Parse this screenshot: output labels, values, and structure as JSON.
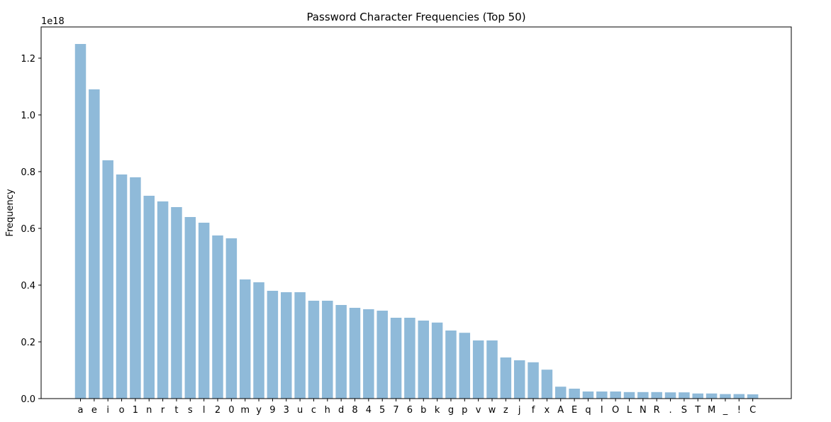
{
  "chart_data": {
    "type": "bar",
    "title": "Password Character Frequencies (Top 50)",
    "xlabel": "",
    "ylabel": "Frequency",
    "offset_text": "1e18",
    "scale": 1e+18,
    "ylim": [
      0,
      1.31
    ],
    "yticks": [
      0.0,
      0.2,
      0.4,
      0.6,
      0.8,
      1.0,
      1.2
    ],
    "ytick_labels": [
      "0.0",
      "0.2",
      "0.4",
      "0.6",
      "0.8",
      "1.0",
      "1.2"
    ],
    "grid": false,
    "bar_color": "#8fbad9",
    "categories": [
      "a",
      "e",
      "i",
      "o",
      "1",
      "n",
      "r",
      "t",
      "s",
      "l",
      "2",
      "0",
      "m",
      "y",
      "9",
      "3",
      "u",
      "c",
      "h",
      "d",
      "8",
      "4",
      "5",
      "7",
      "6",
      "b",
      "k",
      "g",
      "p",
      "v",
      "w",
      "z",
      "j",
      "f",
      "x",
      "A",
      "E",
      "q",
      "I",
      "O",
      "L",
      "N",
      "R",
      ".",
      "S",
      "T",
      "M",
      "_",
      "!",
      "C"
    ],
    "values": [
      1.25,
      1.09,
      0.84,
      0.79,
      0.78,
      0.715,
      0.695,
      0.675,
      0.64,
      0.62,
      0.575,
      0.565,
      0.42,
      0.41,
      0.38,
      0.375,
      0.375,
      0.345,
      0.345,
      0.33,
      0.32,
      0.315,
      0.31,
      0.285,
      0.285,
      0.275,
      0.268,
      0.24,
      0.232,
      0.205,
      0.205,
      0.145,
      0.135,
      0.128,
      0.102,
      0.042,
      0.035,
      0.025,
      0.025,
      0.025,
      0.023,
      0.023,
      0.023,
      0.022,
      0.022,
      0.018,
      0.018,
      0.016,
      0.016,
      0.015
    ]
  }
}
